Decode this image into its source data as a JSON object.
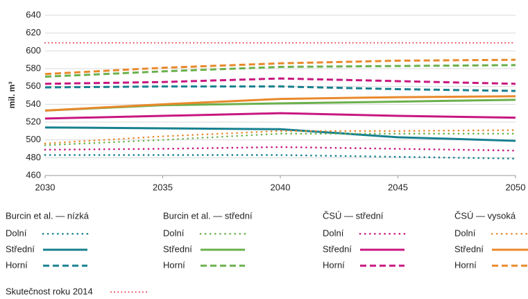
{
  "chart_data": {
    "type": "line",
    "ylabel": "mil. m³",
    "x": [
      2030,
      2035,
      2040,
      2045,
      2050
    ],
    "xlim": [
      2030,
      2050
    ],
    "xticks": [
      2030,
      2035,
      2040,
      2045,
      2050
    ],
    "ylim": [
      460,
      640
    ],
    "yticks": [
      460,
      480,
      500,
      520,
      540,
      560,
      580,
      600,
      620,
      640
    ],
    "grid": true,
    "groups": [
      {
        "name": "Burcin et al. — nízká",
        "series": [
          {
            "name": "Dolní",
            "color": "#17808f",
            "style": "dotted",
            "values": [
              483,
              483,
              483,
              481,
              479
            ]
          },
          {
            "name": "Střední",
            "color": "#17808f",
            "style": "solid",
            "values": [
              514,
              513,
              512,
              503,
              499
            ]
          },
          {
            "name": "Horní",
            "color": "#17808f",
            "style": "dashed",
            "values": [
              559,
              560,
              560,
              557,
              555
            ]
          }
        ]
      },
      {
        "name": "Burcin et al. — střední",
        "series": [
          {
            "name": "Dolní",
            "color": "#6ab04c",
            "style": "dotted",
            "values": [
              494,
              500,
              507,
              507,
              507
            ]
          },
          {
            "name": "Střední",
            "color": "#6ab04c",
            "style": "solid",
            "values": [
              533,
              539,
              541,
              543,
              545
            ]
          },
          {
            "name": "Horní",
            "color": "#6ab04c",
            "style": "dashed",
            "values": [
              571,
              577,
              582,
              583,
              584
            ]
          }
        ]
      },
      {
        "name": "ČSÚ — střední",
        "series": [
          {
            "name": "Dolní",
            "color": "#c8177f",
            "style": "dotted",
            "values": [
              489,
              490,
              492,
              490,
              488
            ]
          },
          {
            "name": "Střední",
            "color": "#c8177f",
            "style": "solid",
            "values": [
              524,
              527,
              530,
              527,
              525
            ]
          },
          {
            "name": "Horní",
            "color": "#c8177f",
            "style": "dashed",
            "values": [
              563,
              565,
              569,
              566,
              563
            ]
          }
        ]
      },
      {
        "name": "ČSÚ — vysoká",
        "series": [
          {
            "name": "Dolní",
            "color": "#e8892b",
            "style": "dotted",
            "values": [
              496,
              504,
              510,
              510,
              511
            ]
          },
          {
            "name": "Střední",
            "color": "#e8892b",
            "style": "solid",
            "values": [
              533,
              540,
              546,
              548,
              549
            ]
          },
          {
            "name": "Horní",
            "color": "#e8892b",
            "style": "dashed",
            "values": [
              574,
              581,
              586,
              589,
              590
            ]
          }
        ]
      }
    ],
    "reference": {
      "name": "Skutečnost roku 2014",
      "color": "#e2142d",
      "style": "dotted-fine",
      "values": [
        609,
        609,
        609,
        609,
        609
      ]
    }
  }
}
